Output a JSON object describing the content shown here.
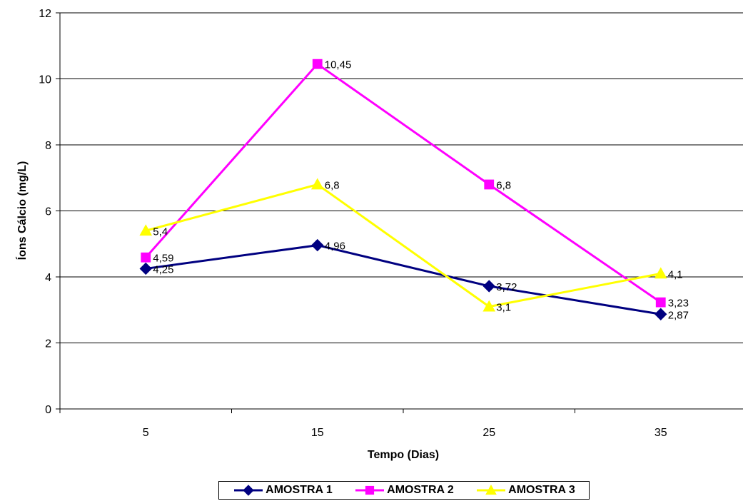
{
  "chart_data": {
    "type": "line",
    "xlabel": "Tempo (Dias)",
    "ylabel": "Íons Cálcio (mg/L)",
    "categories": [
      "5",
      "15",
      "25",
      "35"
    ],
    "ylim": [
      0,
      12
    ],
    "yticks": [
      "0",
      "2",
      "4",
      "6",
      "8",
      "10",
      "12"
    ],
    "grid": "horizontal",
    "legend_position": "bottom",
    "series": [
      {
        "name": "AMOSTRA 1",
        "values": [
          4.25,
          4.96,
          3.72,
          2.87
        ],
        "labels": [
          "4,25",
          "4,96",
          "3,72",
          "2,87"
        ],
        "color": "#000080",
        "marker": "diamond"
      },
      {
        "name": "AMOSTRA 2",
        "values": [
          4.59,
          10.45,
          6.8,
          3.23
        ],
        "labels": [
          "4,59",
          "10,45",
          "6,8",
          "3,23"
        ],
        "color": "#FF00FF",
        "marker": "square"
      },
      {
        "name": "AMOSTRA 3",
        "values": [
          5.4,
          6.8,
          3.1,
          4.1
        ],
        "labels": [
          "5,4",
          "6,8",
          "3,1",
          "4,1"
        ],
        "color": "#FFFF00",
        "marker": "triangle"
      }
    ]
  }
}
